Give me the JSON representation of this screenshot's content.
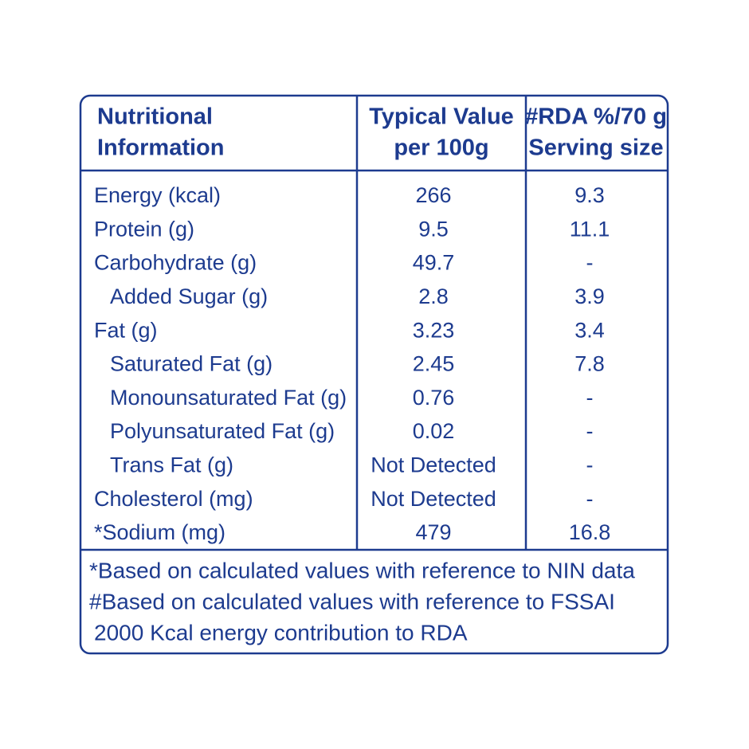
{
  "table": {
    "header": [
      [
        "Nutritional",
        "Information"
      ],
      [
        "Typical Value",
        "per 100g"
      ],
      [
        "#RDA %/70 g",
        "Serving size"
      ]
    ],
    "rows": [
      {
        "nutrient": "Energy (kcal)",
        "per_100g": "266",
        "rda": "9.3"
      },
      {
        "nutrient": "Protein (g)",
        "per_100g": "9.5",
        "rda": "11.1"
      },
      {
        "nutrient": "Carbohydrate (g)",
        "per_100g": "49.7",
        "rda": "-"
      },
      {
        "nutrient": "Added Sugar (g)",
        "per_100g": "2.8",
        "rda": "3.9",
        "sub": true
      },
      {
        "nutrient": "Fat (g)",
        "per_100g": "3.23",
        "rda": "3.4"
      },
      {
        "nutrient": "Saturated Fat (g)",
        "per_100g": "2.45",
        "rda": "7.8",
        "sub": true
      },
      {
        "nutrient": "Monounsaturated Fat (g)",
        "per_100g": "0.76",
        "rda": "-",
        "sub": true
      },
      {
        "nutrient": "Polyunsaturated Fat (g)",
        "per_100g": "0.02",
        "rda": "-",
        "sub": true
      },
      {
        "nutrient": "Trans Fat (g)",
        "per_100g": "Not Detected",
        "rda": "-",
        "sub": true
      },
      {
        "nutrient": "Cholesterol (mg)",
        "per_100g": "Not Detected",
        "rda": "-"
      },
      {
        "nutrient": "*Sodium (mg)",
        "per_100g": "479",
        "rda": "16.8"
      }
    ],
    "footnotes": [
      "*Based on calculated values with reference to NIN data",
      "#Based on calculated values with reference to FSSAI",
      "2000 Kcal energy contribution to RDA"
    ]
  }
}
